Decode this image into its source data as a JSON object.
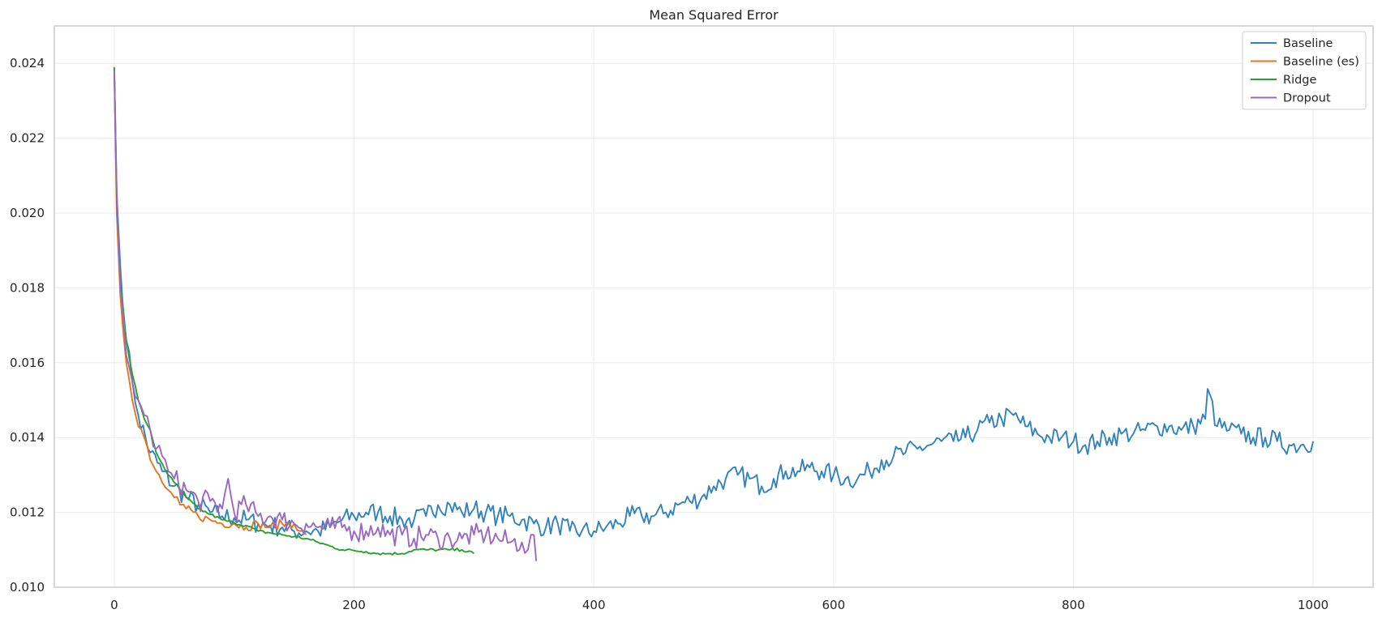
{
  "chart_data": {
    "type": "line",
    "title": "Mean Squared Error",
    "xlabel": "",
    "ylabel": "",
    "xlim": [
      -50,
      1050
    ],
    "ylim": [
      0.01,
      0.025
    ],
    "xticks": [
      0,
      200,
      400,
      600,
      800,
      1000
    ],
    "xtick_labels": [
      "0",
      "200",
      "400",
      "600",
      "800",
      "1000"
    ],
    "yticks": [
      0.01,
      0.012,
      0.014,
      0.016,
      0.018,
      0.02,
      0.022,
      0.024
    ],
    "ytick_labels": [
      "0.010",
      "0.012",
      "0.014",
      "0.016",
      "0.018",
      "0.020",
      "0.022",
      "0.024"
    ],
    "grid": true,
    "legend_position": "top-right",
    "series": [
      {
        "name": "Baseline",
        "color": "#3182bd",
        "x": [
          0,
          2,
          5,
          10,
          15,
          20,
          30,
          40,
          50,
          60,
          70,
          80,
          90,
          100,
          110,
          120,
          130,
          140,
          150,
          160,
          170,
          180,
          190,
          200,
          210,
          220,
          230,
          240,
          250,
          260,
          270,
          280,
          290,
          300,
          310,
          320,
          330,
          340,
          350,
          360,
          370,
          380,
          390,
          400,
          410,
          420,
          430,
          440,
          450,
          460,
          470,
          480,
          490,
          500,
          510,
          520,
          530,
          540,
          550,
          560,
          570,
          580,
          590,
          600,
          610,
          620,
          630,
          640,
          650,
          660,
          670,
          680,
          690,
          700,
          710,
          720,
          730,
          740,
          750,
          760,
          770,
          780,
          790,
          800,
          810,
          820,
          830,
          840,
          850,
          860,
          870,
          880,
          890,
          900,
          910,
          912,
          920,
          930,
          940,
          950,
          960,
          970,
          980,
          990,
          1000
        ],
        "y": [
          0.0238,
          0.0205,
          0.0186,
          0.0166,
          0.0155,
          0.0146,
          0.0136,
          0.0131,
          0.0127,
          0.0124,
          0.0122,
          0.012,
          0.0119,
          0.01185,
          0.0118,
          0.0117,
          0.01165,
          0.0116,
          0.0115,
          0.0115,
          0.0115,
          0.0116,
          0.0118,
          0.0119,
          0.012,
          0.012,
          0.0119,
          0.0118,
          0.0118,
          0.0119,
          0.0122,
          0.0122,
          0.012,
          0.0121,
          0.012,
          0.0119,
          0.0119,
          0.0118,
          0.0117,
          0.0116,
          0.0117,
          0.0115,
          0.0115,
          0.0115,
          0.0116,
          0.0117,
          0.0119,
          0.0119,
          0.0119,
          0.012,
          0.0122,
          0.0123,
          0.0124,
          0.0127,
          0.0129,
          0.013,
          0.0129,
          0.0127,
          0.0129,
          0.0131,
          0.0131,
          0.0132,
          0.0131,
          0.013,
          0.0129,
          0.0129,
          0.0131,
          0.0134,
          0.0135,
          0.0136,
          0.0137,
          0.0138,
          0.0139,
          0.0139,
          0.014,
          0.0142,
          0.0144,
          0.0145,
          0.0146,
          0.0143,
          0.0141,
          0.014,
          0.014,
          0.0139,
          0.0138,
          0.0139,
          0.014,
          0.0141,
          0.0141,
          0.0142,
          0.0143,
          0.0143,
          0.0142,
          0.0143,
          0.0145,
          0.0153,
          0.0143,
          0.0142,
          0.0141,
          0.014,
          0.014,
          0.0139,
          0.0138,
          0.0138,
          0.0139
        ]
      },
      {
        "name": "Baseline (es)",
        "color": "#e6761d",
        "x": [
          0,
          2,
          5,
          10,
          15,
          20,
          25,
          30,
          35,
          40,
          45,
          50,
          55,
          60,
          70,
          80,
          90,
          100,
          110,
          120,
          130,
          140,
          150,
          155,
          160
        ],
        "y": [
          0.0238,
          0.02,
          0.0178,
          0.016,
          0.015,
          0.0143,
          0.014,
          0.0134,
          0.0131,
          0.0128,
          0.0126,
          0.0124,
          0.0122,
          0.0121,
          0.0119,
          0.0118,
          0.0117,
          0.0117,
          0.0116,
          0.0117,
          0.0116,
          0.0117,
          0.0117,
          0.0115,
          0.0114
        ]
      },
      {
        "name": "Ridge",
        "color": "#2ca02c",
        "x": [
          0,
          2,
          5,
          10,
          15,
          20,
          25,
          30,
          35,
          40,
          45,
          50,
          60,
          70,
          80,
          90,
          100,
          110,
          120,
          130,
          140,
          150,
          160,
          170,
          180,
          190,
          200,
          210,
          220,
          230,
          240,
          250,
          260,
          270,
          280,
          290,
          300
        ],
        "y": [
          0.0239,
          0.0203,
          0.0182,
          0.0166,
          0.0157,
          0.015,
          0.0145,
          0.0142,
          0.0136,
          0.0133,
          0.013,
          0.0128,
          0.0124,
          0.0121,
          0.01195,
          0.0118,
          0.01172,
          0.01165,
          0.0115,
          0.01145,
          0.0114,
          0.01135,
          0.0113,
          0.0112,
          0.0111,
          0.011,
          0.01098,
          0.01095,
          0.0109,
          0.0109,
          0.0109,
          0.011,
          0.011,
          0.011,
          0.011,
          0.011,
          0.0109
        ]
      },
      {
        "name": "Dropout",
        "color": "#9a68c2",
        "x": [
          0,
          2,
          5,
          10,
          15,
          20,
          25,
          30,
          35,
          40,
          45,
          50,
          60,
          70,
          80,
          90,
          95,
          100,
          110,
          120,
          130,
          140,
          150,
          160,
          170,
          180,
          190,
          200,
          210,
          220,
          230,
          240,
          250,
          260,
          270,
          280,
          290,
          300,
          310,
          320,
          330,
          340,
          345,
          350,
          352
        ],
        "y": [
          0.0238,
          0.0206,
          0.018,
          0.0162,
          0.0155,
          0.015,
          0.0146,
          0.0142,
          0.0137,
          0.0135,
          0.0131,
          0.0129,
          0.0126,
          0.0123,
          0.0123,
          0.0121,
          0.0129,
          0.012,
          0.0122,
          0.0119,
          0.0119,
          0.0118,
          0.0117,
          0.0117,
          0.0116,
          0.0116,
          0.0116,
          0.0115,
          0.0115,
          0.0116,
          0.0114,
          0.0114,
          0.0113,
          0.0114,
          0.0113,
          0.0113,
          0.0113,
          0.0114,
          0.0114,
          0.0113,
          0.0112,
          0.0112,
          0.011,
          0.0114,
          0.0107
        ]
      }
    ]
  }
}
